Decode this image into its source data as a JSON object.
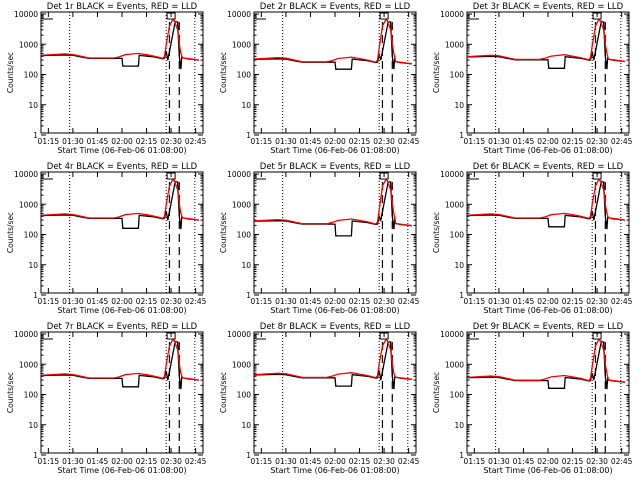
{
  "chart_data": {
    "type": "line",
    "layout": "3x3 grid",
    "x_unit": "minutes after 01:00",
    "xlim": [
      10.5,
      109.5
    ],
    "ylim": [
      1,
      10000
    ],
    "yscale": "log",
    "xlabel": "Start Time (06-Feb-06 01:08:00)",
    "ylabel": "Counts/sec",
    "xticks": [
      {
        "v": 15,
        "label": "01:15"
      },
      {
        "v": 30,
        "label": "01:30"
      },
      {
        "v": 45,
        "label": "01:45"
      },
      {
        "v": 60,
        "label": "02:00"
      },
      {
        "v": 75,
        "label": "02:15"
      },
      {
        "v": 90,
        "label": "02:30"
      },
      {
        "v": 105,
        "label": "02:45"
      }
    ],
    "yticks": [
      {
        "v": 1,
        "label": "1"
      },
      {
        "v": 10,
        "label": "10"
      },
      {
        "v": 100,
        "label": "100"
      },
      {
        "v": 1000,
        "label": "1000"
      },
      {
        "v": 10000,
        "label": "10000"
      }
    ],
    "dotted_lines_x": [
      28,
      87,
      104.5
    ],
    "dashed_lines_x": [
      89,
      95
    ],
    "base_black": {
      "x": [
        10,
        25,
        30,
        35,
        40,
        55,
        60,
        60.5,
        70,
        70.5,
        80,
        85,
        86,
        87,
        88,
        92.5,
        94,
        95,
        96,
        96.5,
        97,
        100,
        107
      ],
      "y": [
        420,
        440,
        430,
        380,
        340,
        340,
        340,
        190,
        200,
        430,
        380,
        330,
        340,
        600,
        300,
        5500,
        5500,
        400,
        150,
        380,
        360,
        330,
        300
      ]
    },
    "base_red": {
      "x": [
        10,
        25,
        30,
        40,
        55,
        58,
        62,
        70,
        75,
        80,
        85,
        86,
        87,
        89,
        91,
        92,
        94,
        95,
        96,
        97,
        100,
        107
      ],
      "y": [
        430,
        480,
        460,
        350,
        350,
        380,
        450,
        500,
        450,
        400,
        340,
        400,
        1000,
        4000,
        6500,
        6000,
        3000,
        1000,
        500,
        350,
        340,
        300
      ]
    },
    "series_names": {
      "black": "Events",
      "red": "LLD"
    },
    "colors": {
      "black": "#000000",
      "red": "#ff0000"
    },
    "panels": [
      {
        "title": "Det 1r BLACK = Events, RED = LLD",
        "scale": 1.0,
        "dip": 190
      },
      {
        "title": "Det 2r BLACK = Events, RED = LLD",
        "scale": 0.75,
        "dip": 150
      },
      {
        "title": "Det 3r BLACK = Events, RED = LLD",
        "scale": 0.9,
        "dip": 160
      },
      {
        "title": "Det 4r BLACK = Events, RED = LLD",
        "scale": 1.0,
        "dip": 160
      },
      {
        "title": "Det 5r BLACK = Events, RED = LLD",
        "scale": 0.65,
        "dip": 90
      },
      {
        "title": "Det 6r BLACK = Events, RED = LLD",
        "scale": 1.0,
        "dip": 180
      },
      {
        "title": "Det 7r BLACK = Events, RED = LLD",
        "scale": 1.0,
        "dip": 180
      },
      {
        "title": "Det 8r BLACK = Events, RED = LLD",
        "scale": 1.05,
        "dip": 190
      },
      {
        "title": "Det 9r BLACK = Events, RED = LLD",
        "scale": 0.85,
        "dip": 160
      }
    ]
  }
}
